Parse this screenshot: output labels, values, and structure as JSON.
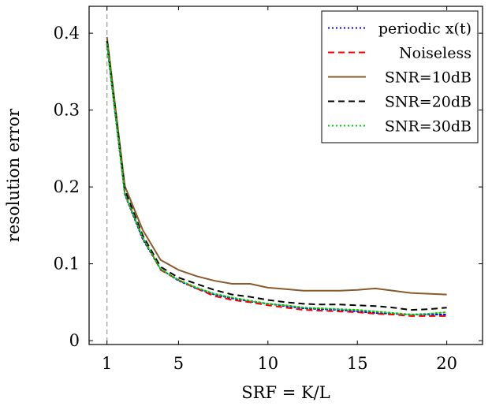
{
  "chart_data": {
    "type": "line",
    "title": "",
    "xlabel": "SRF = K/L",
    "ylabel": "resolution error",
    "xlim": [
      0,
      22
    ],
    "ylim": [
      -0.005,
      0.435
    ],
    "x_ticks": [
      1,
      5,
      10,
      15,
      20
    ],
    "y_ticks": [
      0,
      0.1,
      0.2,
      0.3,
      0.4
    ],
    "x_tick_labels": [
      "1",
      "5",
      "10",
      "15",
      "20"
    ],
    "y_tick_labels": [
      "0",
      "0.1",
      "0.2",
      "0.3",
      "0.4"
    ],
    "reference_line_x": 1,
    "grid": false,
    "legend_position": "top-right",
    "x": [
      1,
      2,
      3,
      4,
      5,
      6,
      7,
      8,
      9,
      10,
      11,
      12,
      13,
      14,
      15,
      16,
      17,
      18,
      19,
      20
    ],
    "series": [
      {
        "name": "periodic x(t)",
        "legend_label": "periodic x(t)",
        "color": "#0000ff",
        "style": "dotted",
        "values": [
          0.385,
          0.19,
          0.132,
          0.093,
          0.078,
          0.068,
          0.06,
          0.055,
          0.051,
          0.048,
          0.045,
          0.042,
          0.041,
          0.04,
          0.038,
          0.036,
          0.035,
          0.034,
          0.034,
          0.034
        ]
      },
      {
        "name": "Noiseless",
        "legend_label": "Noiseless",
        "color": "#ff0000",
        "style": "dashed",
        "values": [
          0.388,
          0.192,
          0.135,
          0.092,
          0.079,
          0.068,
          0.058,
          0.053,
          0.05,
          0.046,
          0.043,
          0.04,
          0.039,
          0.038,
          0.037,
          0.035,
          0.034,
          0.032,
          0.032,
          0.032
        ]
      },
      {
        "name": "SNR=10dB",
        "legend_label": "SNR=10dB",
        "color": "#8b5a2b",
        "style": "solid",
        "values": [
          0.395,
          0.201,
          0.144,
          0.105,
          0.092,
          0.084,
          0.078,
          0.074,
          0.074,
          0.069,
          0.067,
          0.065,
          0.065,
          0.065,
          0.066,
          0.068,
          0.065,
          0.062,
          0.061,
          0.06
        ]
      },
      {
        "name": "SNR=20dB",
        "legend_label": "SNR=20dB",
        "color": "#000000",
        "style": "dashed",
        "values": [
          0.39,
          0.196,
          0.137,
          0.096,
          0.082,
          0.074,
          0.066,
          0.06,
          0.057,
          0.053,
          0.05,
          0.048,
          0.047,
          0.047,
          0.046,
          0.045,
          0.043,
          0.04,
          0.041,
          0.043
        ]
      },
      {
        "name": "SNR=30dB",
        "legend_label": "SNR=30dB",
        "color": "#00cc00",
        "style": "dotted",
        "values": [
          0.386,
          0.191,
          0.134,
          0.093,
          0.079,
          0.069,
          0.061,
          0.056,
          0.052,
          0.048,
          0.046,
          0.043,
          0.042,
          0.041,
          0.04,
          0.038,
          0.036,
          0.034,
          0.035,
          0.037
        ]
      }
    ]
  }
}
